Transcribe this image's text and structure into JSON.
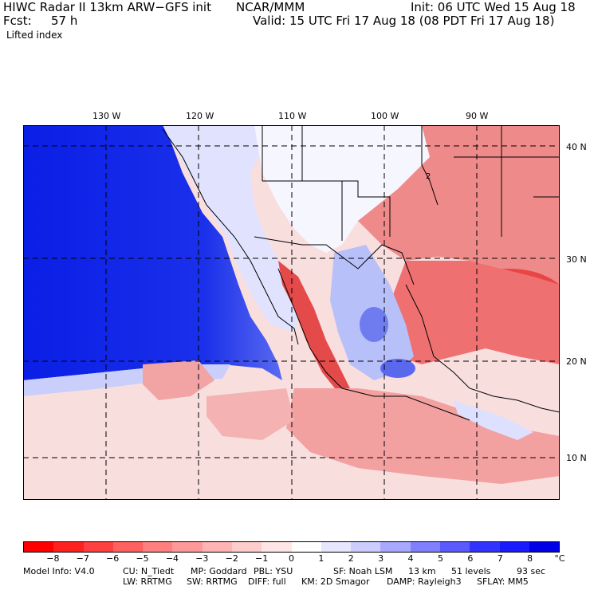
{
  "header": {
    "model_title": "HIWC Radar II 13km ARW−GFS init",
    "org": "NCAR/MMM",
    "init": "Init: 06 UTC Wed 15 Aug 18",
    "fcst_label": "Fcst:",
    "fcst_value": "57 h",
    "valid": "Valid: 15 UTC Fri 17 Aug 18 (08 PDT Fri 17 Aug 18)",
    "field": "Lifted index"
  },
  "map": {
    "lon_labels": [
      "130 W",
      "120 W",
      "110 W",
      "100 W",
      "90 W"
    ],
    "lat_labels": [
      "40 N",
      "30 N",
      "20 N",
      "10 N"
    ],
    "contour_label": "2"
  },
  "colorbar": {
    "ticks": [
      "−8",
      "−7",
      "−6",
      "−5",
      "−4",
      "−3",
      "−2",
      "−1",
      "0",
      "1",
      "2",
      "3",
      "4",
      "5",
      "6",
      "7",
      "8"
    ],
    "unit": "°C",
    "colors": [
      "#ff0000",
      "#ff2020",
      "#ff4040",
      "#ff6060",
      "#ff7f7f",
      "#ff9999",
      "#ffb3b3",
      "#ffcccc",
      "#ffe6e6",
      "#ffffff",
      "#e6e6ff",
      "#ccccff",
      "#a8a8ff",
      "#8080ff",
      "#5a5aff",
      "#3333ff",
      "#1a1aff",
      "#0000e6"
    ]
  },
  "footer": {
    "line1": [
      "Model Info: V4.0",
      "CU: N_Tiedt",
      "MP: Goddard",
      "PBL: YSU",
      "SF: Noah LSM",
      "13 km",
      "51 levels",
      "93 sec"
    ],
    "line2": [
      "LW: RRTMG",
      "SW: RRTMG",
      "DIFF: full",
      "KM: 2D Smagor",
      "DAMP: Rayleigh3",
      "SFLAY: MM5"
    ]
  },
  "palette": {
    "ocean_stable": "#0a1ee6",
    "stable_mid": "#6a78f2",
    "neutral": "#f2f2ff",
    "unstable_light": "#f7c4c4",
    "unstable_mid": "#ee7f7f",
    "unstable_strong": "#e94040"
  }
}
